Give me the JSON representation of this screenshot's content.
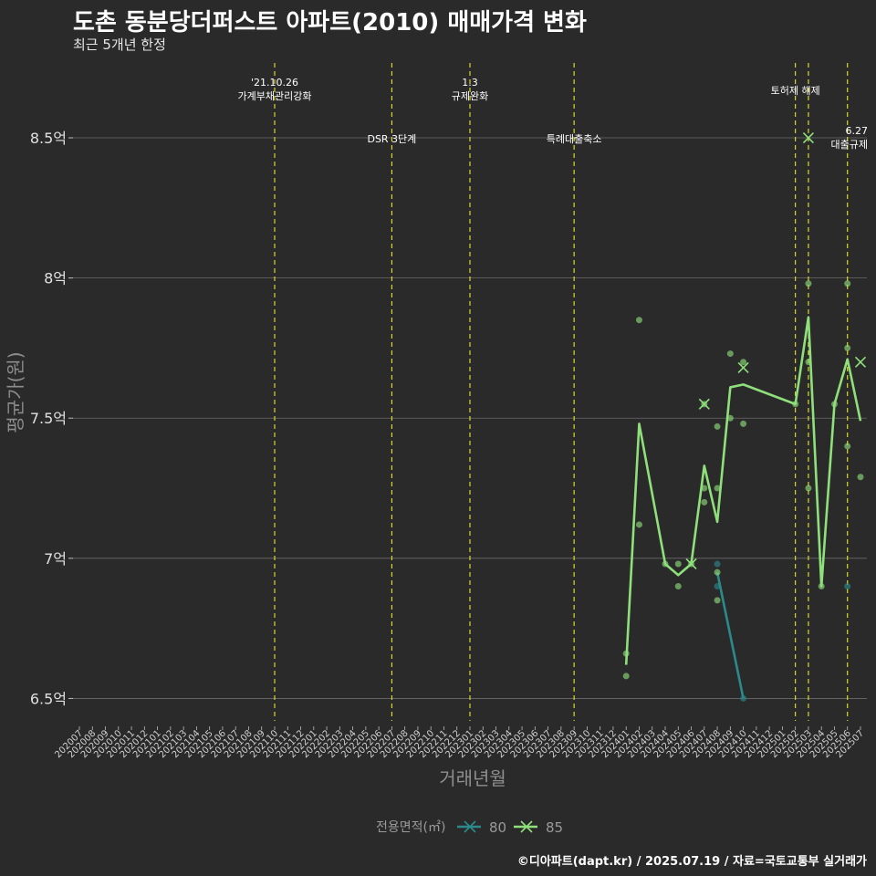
{
  "header": {
    "title": "도촌 동분당더퍼스트 아파트(2010) 매매가격 변화",
    "subtitle": "최근 5개년 한정"
  },
  "footer": {
    "credit": "©디아파트(dapt.kr) / 2025.07.19 / 자료=국토교통부 실거래가"
  },
  "colors": {
    "background": "#2a2a2b",
    "series80": "#2a8a8c",
    "series85": "#8fe07a",
    "policy": "#e8e82a",
    "grid": "#6a6a6a"
  },
  "chart_data": {
    "type": "line",
    "xlabel": "거래년월",
    "ylabel": "평균가(원)",
    "yticks": [
      6.5,
      7,
      7.5,
      8,
      8.5
    ],
    "ytick_labels": [
      "6.5억",
      "7억",
      "7.5억",
      "8억",
      "8.5억"
    ],
    "ylim": [
      6.42,
      8.78
    ],
    "categories": [
      "202007",
      "202008",
      "202009",
      "202010",
      "202011",
      "202012",
      "202101",
      "202102",
      "202103",
      "202104",
      "202105",
      "202106",
      "202107",
      "202108",
      "202109",
      "202110",
      "202111",
      "202112",
      "202201",
      "202202",
      "202203",
      "202204",
      "202205",
      "202206",
      "202207",
      "202208",
      "202209",
      "202210",
      "202211",
      "202212",
      "202301",
      "202302",
      "202303",
      "202304",
      "202305",
      "202306",
      "202307",
      "202308",
      "202309",
      "202310",
      "202311",
      "202312",
      "202401",
      "202402",
      "202403",
      "202404",
      "202405",
      "202406",
      "202407",
      "202408",
      "202409",
      "202410",
      "202411",
      "202412",
      "202501",
      "202502",
      "202503",
      "202504",
      "202505",
      "202506",
      "202507"
    ],
    "legend": {
      "title": "전용면적(㎡)",
      "position": "bottom",
      "entries": [
        "80",
        "85"
      ]
    },
    "series": [
      {
        "name": "80",
        "line": [
          {
            "x": "202408",
            "y": 6.95
          },
          {
            "x": "202410",
            "y": 6.5
          }
        ],
        "points": [
          {
            "x": "202408",
            "y": 6.98
          },
          {
            "x": "202408",
            "y": 6.9
          },
          {
            "x": "202410",
            "y": 6.5
          },
          {
            "x": "202506",
            "y": 6.9
          }
        ],
        "crosses": []
      },
      {
        "name": "85",
        "line": [
          {
            "x": "202401",
            "y": 6.62
          },
          {
            "x": "202402",
            "y": 7.48
          },
          {
            "x": "202404",
            "y": 6.98
          },
          {
            "x": "202405",
            "y": 6.94
          },
          {
            "x": "202406",
            "y": 6.98
          },
          {
            "x": "202407",
            "y": 7.33
          },
          {
            "x": "202408",
            "y": 7.13
          },
          {
            "x": "202409",
            "y": 7.61
          },
          {
            "x": "202410",
            "y": 7.62
          },
          {
            "x": "202502",
            "y": 7.55
          },
          {
            "x": "202503",
            "y": 7.86
          },
          {
            "x": "202504",
            "y": 6.9
          },
          {
            "x": "202505",
            "y": 7.55
          },
          {
            "x": "202506",
            "y": 7.71
          },
          {
            "x": "202507",
            "y": 7.49
          }
        ],
        "points": [
          {
            "x": "202401",
            "y": 6.66
          },
          {
            "x": "202401",
            "y": 6.58
          },
          {
            "x": "202402",
            "y": 7.85
          },
          {
            "x": "202402",
            "y": 7.12
          },
          {
            "x": "202404",
            "y": 6.98
          },
          {
            "x": "202405",
            "y": 6.98
          },
          {
            "x": "202405",
            "y": 6.9
          },
          {
            "x": "202406",
            "y": 6.98
          },
          {
            "x": "202407",
            "y": 7.55
          },
          {
            "x": "202407",
            "y": 7.25
          },
          {
            "x": "202407",
            "y": 7.2
          },
          {
            "x": "202408",
            "y": 7.47
          },
          {
            "x": "202408",
            "y": 7.25
          },
          {
            "x": "202408",
            "y": 6.95
          },
          {
            "x": "202408",
            "y": 6.85
          },
          {
            "x": "202409",
            "y": 7.73
          },
          {
            "x": "202409",
            "y": 7.5
          },
          {
            "x": "202410",
            "y": 7.7
          },
          {
            "x": "202410",
            "y": 7.48
          },
          {
            "x": "202502",
            "y": 7.55
          },
          {
            "x": "202503",
            "y": 7.98
          },
          {
            "x": "202503",
            "y": 7.7
          },
          {
            "x": "202503",
            "y": 7.25
          },
          {
            "x": "202504",
            "y": 6.9
          },
          {
            "x": "202505",
            "y": 7.55
          },
          {
            "x": "202506",
            "y": 7.98
          },
          {
            "x": "202506",
            "y": 7.75
          },
          {
            "x": "202506",
            "y": 7.4
          },
          {
            "x": "202507",
            "y": 7.29
          }
        ],
        "crosses": [
          {
            "x": "202406",
            "y": 6.98
          },
          {
            "x": "202407",
            "y": 7.55
          },
          {
            "x": "202410",
            "y": 7.68
          },
          {
            "x": "202503",
            "y": 8.5
          },
          {
            "x": "202507",
            "y": 7.7
          }
        ]
      }
    ],
    "policy_events": [
      {
        "x": "202110",
        "lines": [
          "'21.10.26",
          "가계부채관리강화"
        ],
        "level": 1
      },
      {
        "x": "202207",
        "lines": [
          "DSR 3단계"
        ],
        "level": 2
      },
      {
        "x": "202301",
        "lines": [
          "1.3",
          "규제완화"
        ],
        "level": 1
      },
      {
        "x": "202309",
        "lines": [
          "특례대출축소"
        ],
        "level": 2
      },
      {
        "x": "202502",
        "lines": [
          "토허제 해제"
        ],
        "level": 1
      },
      {
        "x": "202503",
        "lines": [],
        "level": 1
      },
      {
        "x": "202506",
        "lines": [
          "6.27",
          "대출규제"
        ],
        "level": 2
      }
    ]
  }
}
